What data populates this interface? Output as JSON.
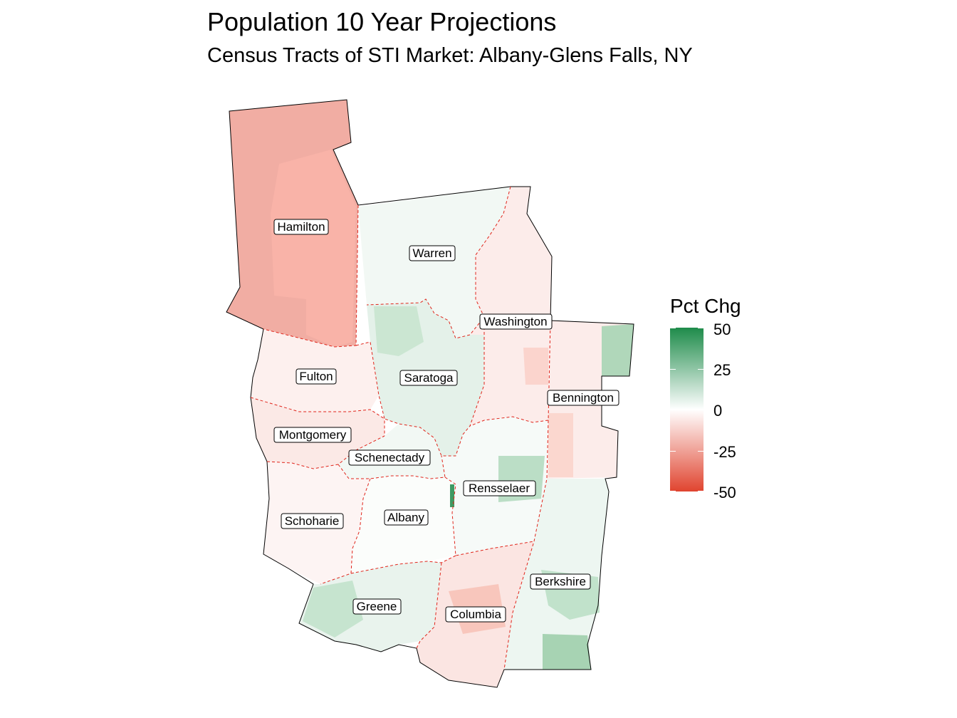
{
  "title": "Population 10 Year Projections",
  "subtitle": "Census Tracts of STI Market: Albany-Glens Falls, NY",
  "legend": {
    "title": "Pct Chg",
    "ticks": [
      "50",
      "25",
      "0",
      "-25",
      "-50"
    ],
    "range": [
      -50,
      50
    ],
    "high_color": "#1e8b4a",
    "mid_color": "#ffffff",
    "low_color": "#e0442f"
  },
  "counties": [
    {
      "name": "Hamilton",
      "pct_chg": -22
    },
    {
      "name": "Warren",
      "pct_chg": 3
    },
    {
      "name": "Washington",
      "pct_chg": -5
    },
    {
      "name": "Fulton",
      "pct_chg": -4
    },
    {
      "name": "Saratoga",
      "pct_chg": 6
    },
    {
      "name": "Bennington",
      "pct_chg": -5
    },
    {
      "name": "Montgomery",
      "pct_chg": -6
    },
    {
      "name": "Schenectady",
      "pct_chg": 3
    },
    {
      "name": "Rensselaer",
      "pct_chg": 2
    },
    {
      "name": "Schoharie",
      "pct_chg": -3
    },
    {
      "name": "Albany",
      "pct_chg": 1
    },
    {
      "name": "Berkshire",
      "pct_chg": 4
    },
    {
      "name": "Greene",
      "pct_chg": 5
    },
    {
      "name": "Columbia",
      "pct_chg": -7
    }
  ]
}
